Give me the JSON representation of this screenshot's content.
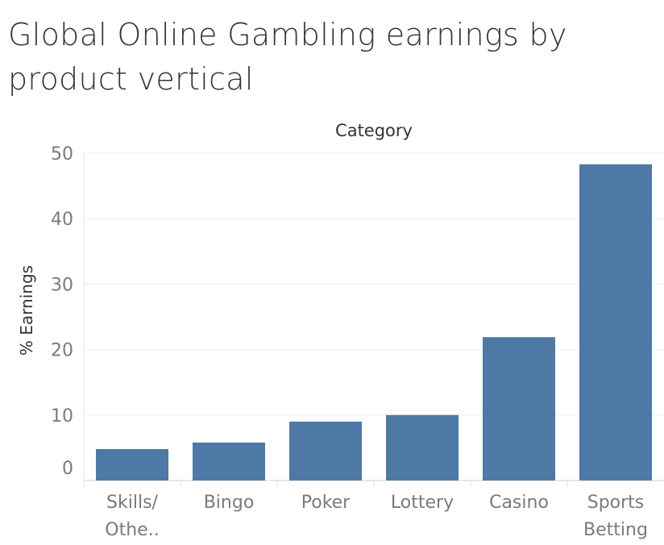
{
  "chart_data": {
    "type": "bar",
    "title": "Global Online Gambling earnings by product vertical",
    "header": "Category",
    "ylabel": "% Earnings",
    "xlabel": "",
    "categories": [
      "Skills/ Othe..",
      "Bingo",
      "Poker",
      "Lottery",
      "Casino",
      "Sports Betting"
    ],
    "category_lines": [
      [
        "Skills/",
        "Othe.."
      ],
      [
        "Bingo"
      ],
      [
        "Poker"
      ],
      [
        "Lottery"
      ],
      [
        "Casino"
      ],
      [
        "Sports",
        "Betting"
      ]
    ],
    "values": [
      4.8,
      5.8,
      9.0,
      10.0,
      21.9,
      48.3
    ],
    "ylim": [
      0,
      50
    ],
    "yticks": [
      0,
      10,
      20,
      30,
      40,
      50
    ],
    "grid": true,
    "bar_color": "#4e79a7"
  }
}
